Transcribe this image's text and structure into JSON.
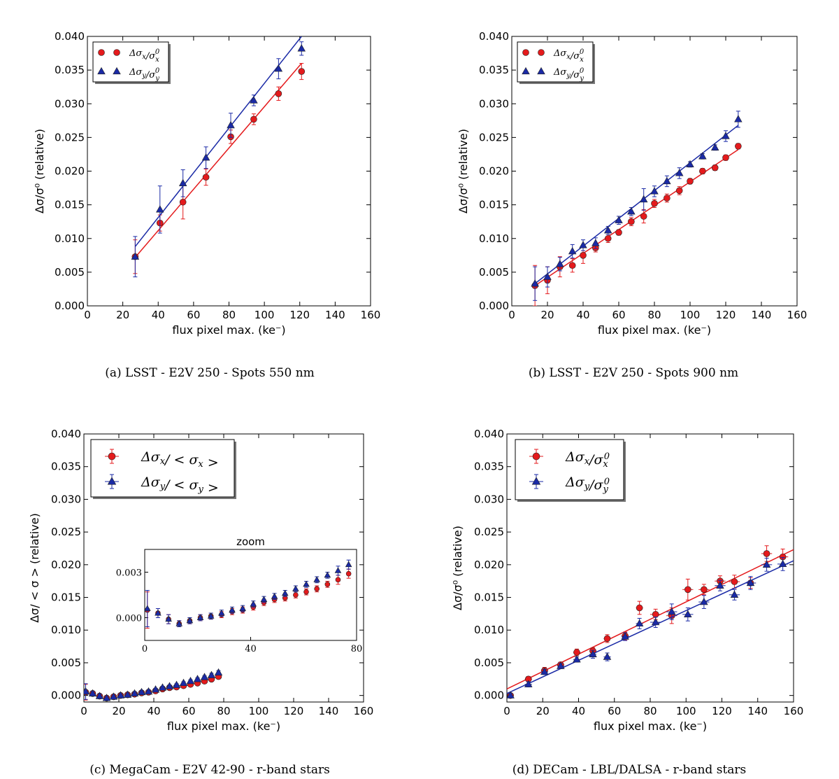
{
  "chart_data": [
    {
      "id": "a",
      "type": "scatter",
      "caption": "(a) LSST - E2V 250 - Spots 550 nm",
      "xlabel": "flux pixel max. (ke⁻)",
      "ylabel": "Δσ/σ⁰ (relative)",
      "xlim": [
        0,
        160
      ],
      "ylim": [
        0,
        0.04
      ],
      "xticks": [
        "0",
        "20",
        "40",
        "60",
        "80",
        "100",
        "120",
        "140",
        "160"
      ],
      "yticks": [
        "0.000",
        "0.005",
        "0.010",
        "0.015",
        "0.020",
        "0.025",
        "0.030",
        "0.035",
        "0.040"
      ],
      "legend_position": "top-left",
      "series": [
        {
          "name": "Δσx/σx⁰",
          "marker": "circle",
          "color": "#e41a1c",
          "x": [
            27,
            41,
            54,
            67,
            81,
            94,
            108,
            121
          ],
          "y": [
            0.0073,
            0.0123,
            0.0154,
            0.0191,
            0.0251,
            0.0277,
            0.0315,
            0.0348
          ],
          "yerr": [
            0.0025,
            0.0012,
            0.0025,
            0.0012,
            0.001,
            0.0008,
            0.001,
            0.0012
          ],
          "fit": [
            [
              27,
              0.0072
            ],
            [
              121,
              0.036
            ]
          ]
        },
        {
          "name": "Δσy/σy⁰",
          "marker": "triangle",
          "color": "#1a2aa6",
          "x": [
            27,
            41,
            54,
            67,
            81,
            94,
            108,
            121
          ],
          "y": [
            0.0073,
            0.0143,
            0.0182,
            0.022,
            0.0268,
            0.0305,
            0.0352,
            0.0382
          ],
          "yerr": [
            0.003,
            0.0035,
            0.002,
            0.0016,
            0.0018,
            0.0008,
            0.0015,
            0.001
          ],
          "fit": [
            [
              27,
              0.0088
            ],
            [
              121,
              0.04
            ]
          ]
        }
      ]
    },
    {
      "id": "b",
      "type": "scatter",
      "caption": "(b) LSST - E2V 250 - Spots 900 nm",
      "xlabel": "flux pixel max. (ke⁻)",
      "ylabel": "Δσ/σ⁰ (relative)",
      "xlim": [
        0,
        160
      ],
      "ylim": [
        0,
        0.04
      ],
      "xticks": [
        "0",
        "20",
        "40",
        "60",
        "80",
        "100",
        "120",
        "140",
        "160"
      ],
      "yticks": [
        "0.000",
        "0.005",
        "0.010",
        "0.015",
        "0.020",
        "0.025",
        "0.030",
        "0.035",
        "0.040"
      ],
      "legend_position": "top-left",
      "series": [
        {
          "name": "Δσx/σx⁰",
          "marker": "circle",
          "color": "#e41a1c",
          "x": [
            13,
            20,
            27,
            34,
            40,
            47,
            54,
            60,
            67,
            74,
            80,
            87,
            94,
            100,
            107,
            114,
            120,
            127
          ],
          "y": [
            0.003,
            0.0038,
            0.0058,
            0.006,
            0.0075,
            0.0086,
            0.01,
            0.0109,
            0.0125,
            0.0133,
            0.0152,
            0.016,
            0.0171,
            0.0185,
            0.02,
            0.0205,
            0.022,
            0.0237
          ],
          "yerr": [
            0.003,
            0.002,
            0.0015,
            0.001,
            0.0012,
            0.0006,
            0.0006,
            0.0004,
            0.0006,
            0.001,
            0.0006,
            0.0006,
            0.0006,
            0.0004,
            0.0004,
            0.0004,
            0.0004,
            0.0004
          ],
          "fit": [
            [
              13,
              0.003
            ],
            [
              127,
              0.0232
            ]
          ]
        },
        {
          "name": "Δσy/σy⁰",
          "marker": "triangle",
          "color": "#1a2aa6",
          "x": [
            13,
            20,
            27,
            34,
            40,
            47,
            54,
            60,
            67,
            74,
            80,
            87,
            94,
            100,
            107,
            114,
            120,
            127
          ],
          "y": [
            0.0033,
            0.0043,
            0.0062,
            0.0081,
            0.009,
            0.0093,
            0.0112,
            0.0127,
            0.014,
            0.0158,
            0.017,
            0.0185,
            0.0197,
            0.021,
            0.0222,
            0.0235,
            0.0252,
            0.0277
          ],
          "yerr": [
            0.0025,
            0.0015,
            0.001,
            0.001,
            0.0008,
            0.0008,
            0.0006,
            0.0006,
            0.0006,
            0.0016,
            0.0008,
            0.0008,
            0.0008,
            0.0004,
            0.0004,
            0.0004,
            0.0008,
            0.0012
          ],
          "fit": [
            [
              13,
              0.0033
            ],
            [
              127,
              0.0268
            ]
          ]
        }
      ]
    },
    {
      "id": "c",
      "type": "scatter",
      "caption": "(c) MegaCam - E2V 42-90 - r-band stars",
      "xlabel": "flux pixel max. (ke⁻)",
      "ylabel": "Δσ/ < σ > (relative)",
      "xlim": [
        0,
        160
      ],
      "ylim": [
        -0.001,
        0.04
      ],
      "xticks": [
        "0",
        "20",
        "40",
        "60",
        "80",
        "100",
        "120",
        "140",
        "160"
      ],
      "yticks": [
        "0.000",
        "0.005",
        "0.010",
        "0.015",
        "0.020",
        "0.025",
        "0.030",
        "0.035",
        "0.040"
      ],
      "legend_position": "top-left",
      "series": [
        {
          "name": "Δσx/ < σx >",
          "marker": "circle",
          "color": "#e41a1c",
          "x": [
            1,
            5,
            9,
            13,
            17,
            21,
            25,
            29,
            33,
            37,
            41,
            45,
            49,
            53,
            57,
            61,
            65,
            69,
            73,
            77
          ],
          "y": [
            0.0005,
            0.0003,
            -0.0001,
            -0.0004,
            -0.0002,
            0.0,
            0.0001,
            0.0002,
            0.0004,
            0.0005,
            0.0007,
            0.001,
            0.0012,
            0.0013,
            0.0015,
            0.0017,
            0.0019,
            0.0022,
            0.0025,
            0.0029
          ],
          "yerr": [
            0.0012,
            0.0003,
            0.0003,
            0.0002,
            0.0002,
            0.0002,
            0.0002,
            0.0002,
            0.0002,
            0.0002,
            0.0002,
            0.0002,
            0.0002,
            0.0002,
            0.0002,
            0.0002,
            0.0002,
            0.0002,
            0.0003,
            0.0003
          ]
        },
        {
          "name": "Δσy/ < σy >",
          "marker": "triangle",
          "color": "#1a2aa6",
          "x": [
            1,
            5,
            9,
            13,
            17,
            21,
            25,
            29,
            33,
            37,
            41,
            45,
            49,
            53,
            57,
            61,
            65,
            69,
            73,
            77
          ],
          "y": [
            0.0006,
            0.0003,
            -0.0001,
            -0.0004,
            -0.0002,
            0.0,
            0.0001,
            0.0003,
            0.0005,
            0.0006,
            0.0009,
            0.0012,
            0.0014,
            0.0016,
            0.0019,
            0.0022,
            0.0025,
            0.0028,
            0.0031,
            0.0035
          ],
          "yerr": [
            0.0012,
            0.0003,
            0.0003,
            0.0002,
            0.0002,
            0.0002,
            0.0002,
            0.0002,
            0.0002,
            0.0002,
            0.0002,
            0.0002,
            0.0002,
            0.0002,
            0.0002,
            0.0002,
            0.0002,
            0.0002,
            0.0003,
            0.0003
          ]
        }
      ],
      "inset": {
        "title": "zoom",
        "xlim": [
          0,
          80
        ],
        "ylim": [
          -0.0015,
          0.0045
        ],
        "xticks": [
          "0",
          "40",
          "80"
        ],
        "yticks": [
          "0.000",
          "0.003"
        ],
        "uses_series_of_parent": true
      }
    },
    {
      "id": "d",
      "type": "scatter",
      "caption": "(d) DECam - LBL/DALSA - r-band stars",
      "xlabel": "flux pixel max. (ke⁻)",
      "ylabel": "Δσ/σ⁰ (relative)",
      "xlim": [
        0,
        160
      ],
      "ylim": [
        -0.001,
        0.04
      ],
      "xticks": [
        "0",
        "20",
        "40",
        "60",
        "80",
        "100",
        "120",
        "140",
        "160"
      ],
      "yticks": [
        "0.000",
        "0.005",
        "0.010",
        "0.015",
        "0.020",
        "0.025",
        "0.030",
        "0.035",
        "0.040"
      ],
      "legend_position": "top-left",
      "series": [
        {
          "name": "Δσx/σx⁰",
          "marker": "circle",
          "color": "#e41a1c",
          "x": [
            2,
            12,
            21,
            30,
            39,
            48,
            56,
            66,
            74,
            83,
            92,
            101,
            110,
            119,
            127,
            136,
            145,
            154
          ],
          "y": [
            0.0,
            0.0025,
            0.0038,
            0.0047,
            0.0066,
            0.0068,
            0.0087,
            0.0091,
            0.0134,
            0.0124,
            0.0122,
            0.0162,
            0.0162,
            0.0175,
            0.0174,
            0.0172,
            0.0217,
            0.0212
          ],
          "yerr": [
            0.0003,
            0.0004,
            0.0005,
            0.0004,
            0.0005,
            0.0005,
            0.0006,
            0.0006,
            0.001,
            0.0008,
            0.0012,
            0.0016,
            0.0008,
            0.0008,
            0.001,
            0.0008,
            0.0012,
            0.0012
          ],
          "xerr": [
            1,
            2,
            2,
            2,
            2,
            2,
            2,
            2,
            2,
            3,
            3,
            3,
            3,
            3,
            3,
            3,
            3,
            3
          ],
          "fit": [
            [
              0,
              0.001
            ],
            [
              160,
              0.0223
            ]
          ]
        },
        {
          "name": "Δσy/σy⁰",
          "marker": "triangle",
          "color": "#1a2aa6",
          "x": [
            2,
            12,
            21,
            30,
            39,
            48,
            56,
            66,
            74,
            83,
            92,
            101,
            110,
            119,
            127,
            136,
            145,
            154
          ],
          "y": [
            0.0,
            0.0017,
            0.0036,
            0.0045,
            0.0055,
            0.0063,
            0.0059,
            0.009,
            0.011,
            0.0112,
            0.0128,
            0.0124,
            0.0143,
            0.0168,
            0.0154,
            0.0172,
            0.02,
            0.0201
          ],
          "yerr": [
            0.0003,
            0.0004,
            0.0004,
            0.0004,
            0.0004,
            0.0006,
            0.0006,
            0.0006,
            0.0008,
            0.0008,
            0.0012,
            0.001,
            0.001,
            0.0008,
            0.0008,
            0.001,
            0.001,
            0.001
          ],
          "xerr": [
            1,
            2,
            2,
            2,
            2,
            2,
            2,
            2,
            2,
            3,
            3,
            3,
            3,
            3,
            3,
            3,
            3,
            3
          ],
          "fit": [
            [
              0,
              0.0003
            ],
            [
              160,
              0.0206
            ]
          ]
        }
      ]
    }
  ]
}
